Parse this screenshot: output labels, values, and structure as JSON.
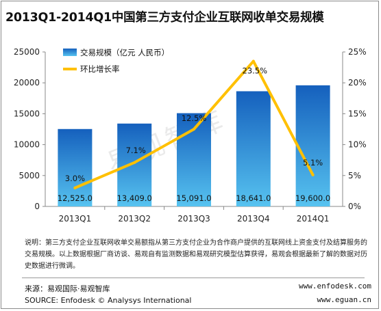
{
  "title": "2013Q1-2014Q1中国第三方支付企业互联网收单交易规模",
  "watermark": "易观智库",
  "chart_data": {
    "type": "bar",
    "categories": [
      "2013Q1",
      "2013Q2",
      "2013Q3",
      "2013Q4",
      "2014Q1"
    ],
    "series": [
      {
        "name": "交易规模（亿元 人民币）",
        "type": "bar",
        "axis": "left",
        "values": [
          12525.0,
          13409.0,
          15091.0,
          18641.0,
          19600.0
        ],
        "labels": [
          "12,525.0",
          "13,409.0",
          "15,091.0",
          "18,641.0",
          "19,600.0"
        ],
        "color": "#2a7ed6"
      },
      {
        "name": "环比增长率",
        "type": "line",
        "axis": "right",
        "values": [
          3.0,
          7.1,
          12.5,
          23.5,
          5.1
        ],
        "labels": [
          "3.0%",
          "7.1%",
          "12.5%",
          "23.5%",
          "5.1%"
        ],
        "color": "#ffc000"
      }
    ],
    "y_left": {
      "ylim": [
        0,
        25000
      ],
      "ticks": [
        "0",
        "5000",
        "10000",
        "15000",
        "20000",
        "25000"
      ]
    },
    "y_right": {
      "ylim": [
        0,
        25
      ],
      "ticks": [
        "0%",
        "5%",
        "10%",
        "15%",
        "20%",
        "25%"
      ]
    },
    "legend": "top-left",
    "grid": false
  },
  "note": "说明：第三方支付企业互联网收单交易额指从第三方支付企业为合作商户提供的互联网线上资金支付及结算服务的交易规模。以上数据根据厂商访谈、易观自有监测数据和易观研究模型估算获得，易观会根据最新了解的数据对历史数据进行微调。",
  "source_cn": "来源：易观国际·易观智库",
  "source_en": "SOURCE: Enfodesk © Analysys International",
  "url1": "www.enfodesk.com",
  "url2": "www.eguan.cn"
}
